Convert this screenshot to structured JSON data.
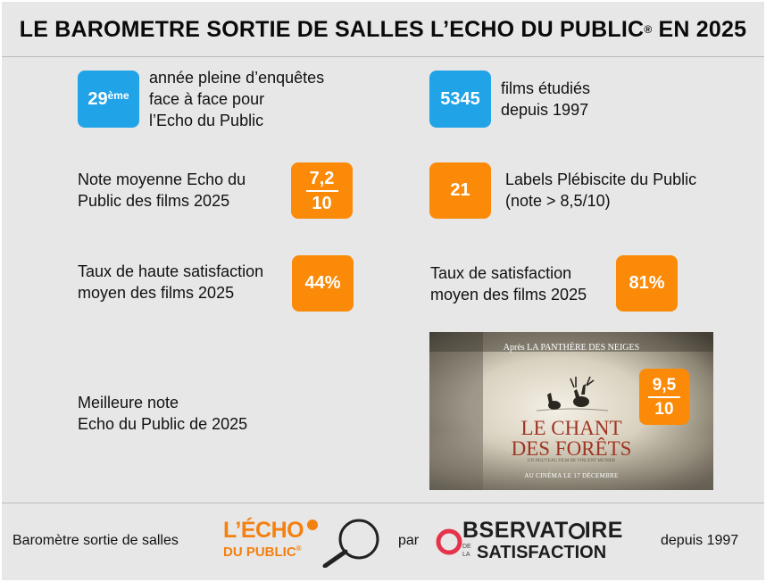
{
  "header": {
    "title": "LE BAROMETRE SORTIE DE SALLES L’ECHO DU PUBLIC",
    "trademark": "®",
    "year": "EN 2025"
  },
  "stats": {
    "years": {
      "value": "29",
      "suffix": "ème",
      "line1": "année pleine d’enquêtes",
      "line2": "face à face pour",
      "line3": "l’Echo du Public"
    },
    "films": {
      "value": "5345",
      "line1": "films étudiés",
      "line2": "depuis 1997"
    },
    "avg_note": {
      "numerator": "7,2",
      "denominator": "10",
      "line1": "Note moyenne Echo du",
      "line2": "Public des films 2025"
    },
    "labels": {
      "value": "21",
      "line1": "Labels Plébiscite du Public",
      "line2": "(note > 8,5/10)"
    },
    "high_satisfaction": {
      "value": "44%",
      "line1": "Taux de haute satisfaction",
      "line2": "moyen des films 2025"
    },
    "satisfaction": {
      "value": "81%",
      "line1": "Taux de satisfaction",
      "line2": "moyen des films 2025"
    },
    "best": {
      "line1": "Meilleure note",
      "line2": "Echo du Public de 2025",
      "numerator": "9,5",
      "denominator": "10"
    }
  },
  "poster": {
    "top_text": "Après LA PANTHÈRE DES NEIGES",
    "title_line1": "LE CHANT",
    "title_line2": "DES FORÊTS",
    "credit": "UN NOUVEAU FILM DE VINCENT MUNIER",
    "release": "AU CINÉMA LE 17 DÉCEMBRE"
  },
  "footer": {
    "left": "Baromètre sortie de salles",
    "by": "par",
    "right": "depuis 1997",
    "echo_line1": "L’ÉCHO",
    "echo_line2": "DU PUBLIC",
    "echo_reg": "®",
    "obs_big": "BSERVAT",
    "obs_small": "IRE",
    "obs_de": "DE",
    "obs_la": "LA",
    "obs_satisfaction": "SATISFACTION"
  },
  "colors": {
    "blue": "#21a3e8",
    "orange": "#fb8a08",
    "background": "#e7e7e7",
    "obs_red": "#e5334b"
  }
}
